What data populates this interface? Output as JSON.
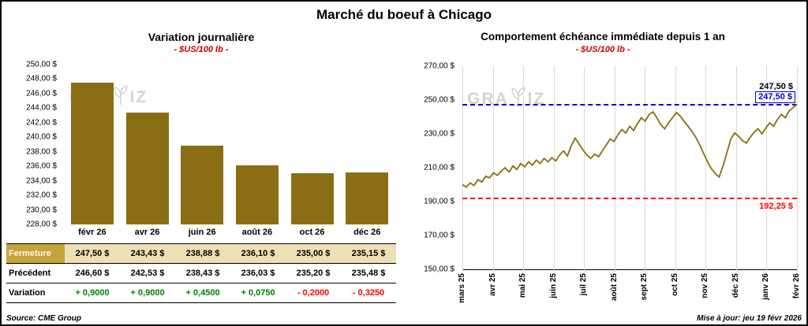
{
  "title": "Marché du boeuf à Chicago",
  "watermark": {
    "left": "GRA",
    "right": "IZ"
  },
  "footer": {
    "source": "Source: CME Group",
    "updated": "Mise à jour: jeu 19 févr 2026"
  },
  "colors": {
    "bar": "#8A6D14",
    "positive": "#008000",
    "negative": "#FF0000",
    "ref_high": "#0000D0",
    "ref_low": "#FF0000",
    "subtitle": "#CC0000",
    "closure_label_bg": "#C7A43B",
    "closure_row_bg": "#EDE0B5"
  },
  "table": {
    "rows": [
      {
        "label": "Fermeture",
        "style": "closure",
        "values": [
          "247,50 $",
          "243,43 $",
          "238,88 $",
          "236,10 $",
          "235,00 $",
          "235,15 $"
        ]
      },
      {
        "label": "Précédent",
        "style": "previous",
        "values": [
          "246,60 $",
          "242,53 $",
          "238,43 $",
          "236,03 $",
          "235,20 $",
          "235,48 $"
        ]
      },
      {
        "label": "Variation",
        "style": "variation",
        "values": [
          "+ 0,9000",
          "+ 0,9000",
          "+ 0,4500",
          "+ 0,0750",
          "- 0,2000",
          "- 0,3250"
        ]
      }
    ]
  },
  "chart_data": [
    {
      "type": "bar",
      "title": "Variation journalière",
      "subtitle": "- $US/100 lb -",
      "categories": [
        "févr 26",
        "avr 26",
        "juin 26",
        "août 26",
        "oct 26",
        "déc 26"
      ],
      "values": [
        247.5,
        243.43,
        238.88,
        236.1,
        235.0,
        235.15
      ],
      "ylim": [
        228,
        250
      ],
      "ytick_labels": [
        "250,00 $",
        "248,00 $",
        "246,00 $",
        "244,00 $",
        "242,00 $",
        "240,00 $",
        "238,00 $",
        "236,00 $",
        "234,00 $",
        "232,00 $",
        "230,00 $",
        "228,00 $"
      ],
      "grid": false,
      "legend": "none"
    },
    {
      "type": "line",
      "title": "Comportement échéance immédiate depuis 1 an",
      "subtitle": "- $US/100 lb -",
      "x_labels": [
        "mars 25",
        "avr 25",
        "mai 25",
        "juin 25",
        "juil 25",
        "août 25",
        "sept 25",
        "oct 25",
        "nov 25",
        "déc 25",
        "janv 26",
        "févr 26"
      ],
      "ylim": [
        150,
        270
      ],
      "ytick_labels": [
        "270,00 $",
        "250,00 $",
        "230,00 $",
        "210,00 $",
        "190,00 $",
        "170,00 $",
        "150,00 $"
      ],
      "grid": "vertical",
      "legend": "none",
      "y_values": [
        200,
        198.5,
        201,
        199.5,
        203,
        201.5,
        205,
        204,
        207,
        205.5,
        208,
        210,
        207.5,
        211,
        209,
        212.5,
        210.5,
        213.5,
        211.5,
        214.5,
        212.5,
        215.5,
        213.5,
        216,
        214,
        217.5,
        220,
        217,
        223,
        227.5,
        224,
        220.5,
        217.5,
        215.5,
        218,
        216.5,
        220,
        223.5,
        227,
        225.5,
        229.5,
        232.5,
        230.5,
        234.5,
        232,
        236,
        239.5,
        237.5,
        241.5,
        243,
        239.5,
        235.5,
        233,
        236.5,
        239.5,
        242.5,
        240.5,
        237.5,
        234.5,
        231.5,
        228,
        223.5,
        218.5,
        213.5,
        209.5,
        206.5,
        204.5,
        211,
        219,
        227,
        230.5,
        228.5,
        226,
        224.5,
        228,
        231,
        233,
        230,
        233.5,
        236.5,
        234.5,
        238.5,
        241.5,
        239.5,
        243.5,
        245.5,
        247.5
      ],
      "ref_lines": [
        {
          "value": 247.5,
          "color": "#0000D0",
          "style": "dashed"
        },
        {
          "value": 192.25,
          "color": "#FF0000",
          "style": "dashed"
        }
      ],
      "annotations": [
        {
          "text": "247,50 $",
          "value": 247.5,
          "color": "#000000",
          "boxed": false,
          "offset": -28
        },
        {
          "text": "247,50 $",
          "value": 247.5,
          "color": "#0000D0",
          "boxed": true,
          "offset": -16
        },
        {
          "text": "192,25 $",
          "value": 192.25,
          "color": "#FF0000",
          "boxed": false,
          "offset": 5
        }
      ]
    }
  ]
}
